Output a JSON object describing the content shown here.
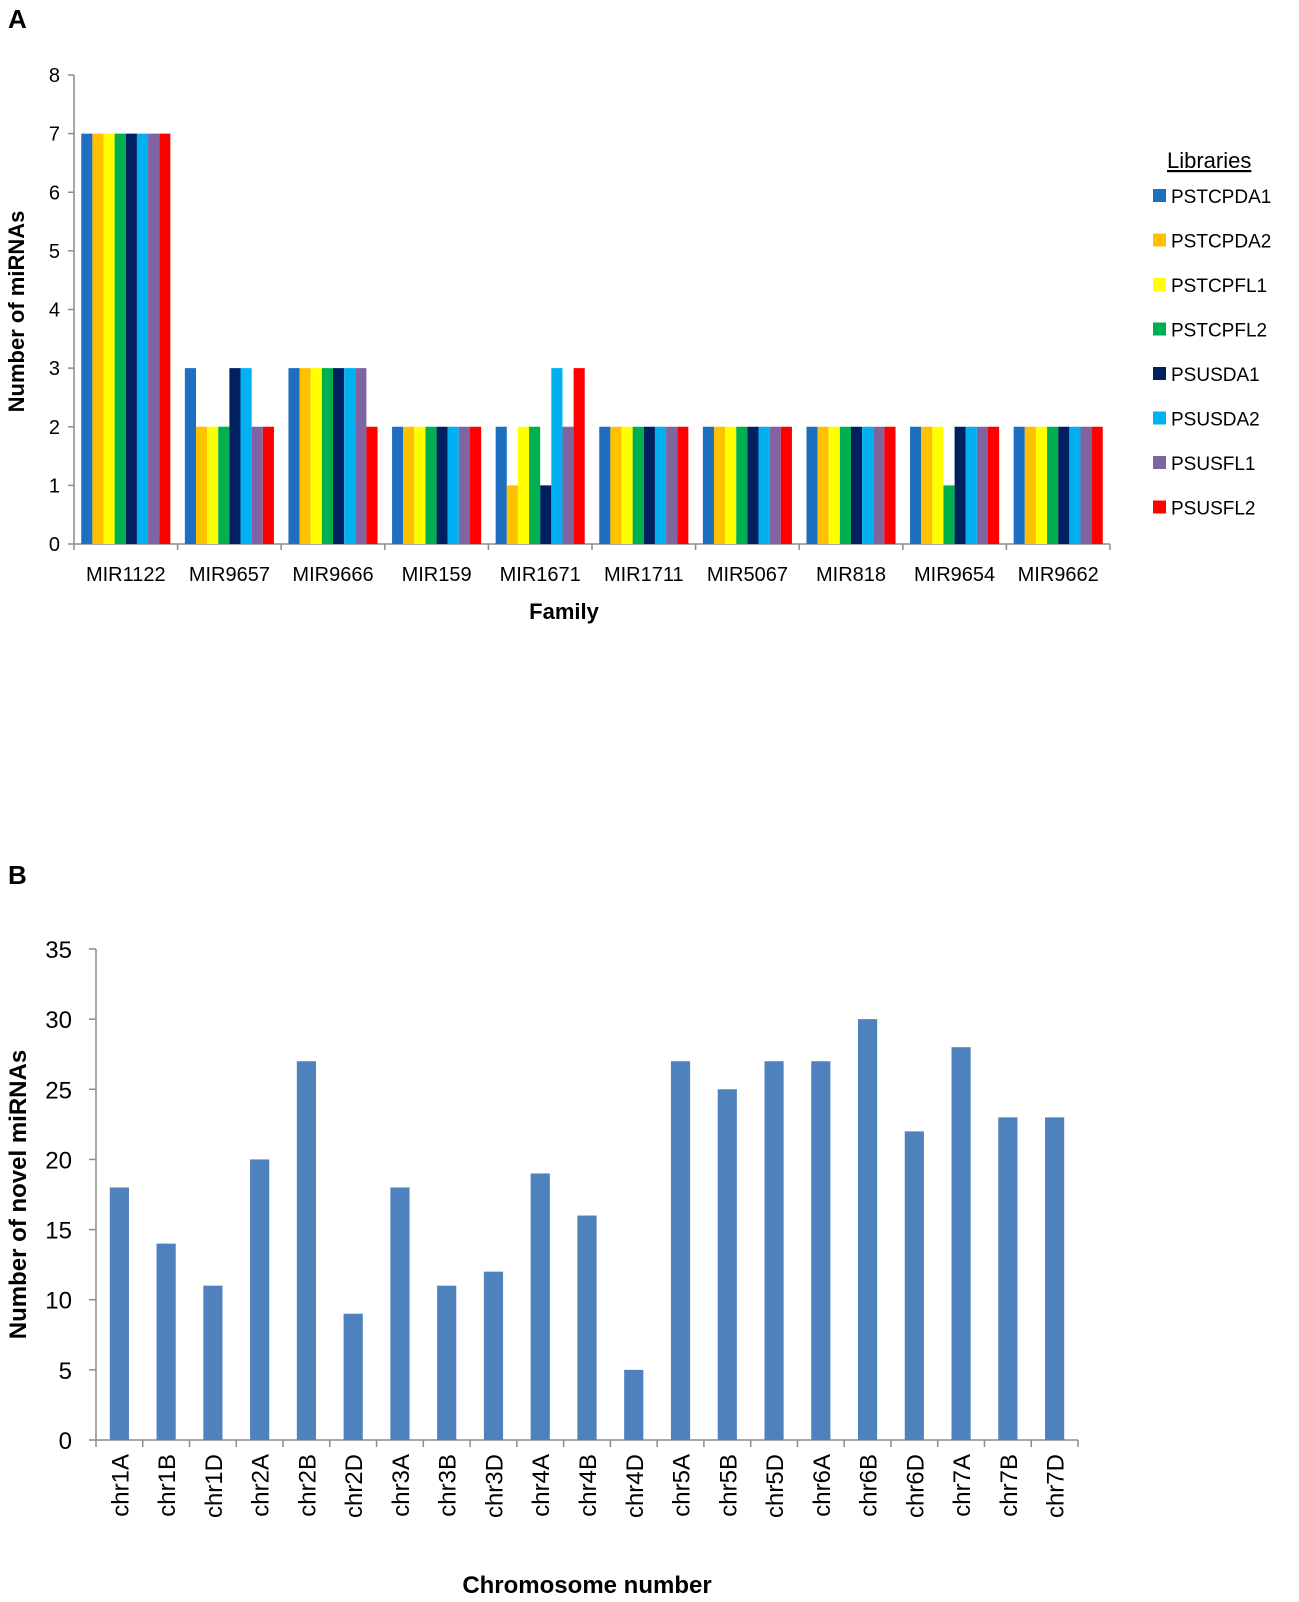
{
  "panels": {
    "a": "A",
    "b": "B"
  },
  "colors": {
    "PSTCPDA1": "#1f6fc0",
    "PSTCPDA2": "#ffc000",
    "PSTCPFL1": "#ffff00",
    "PSTCPFL2": "#00b050",
    "PSUSDA1": "#002060",
    "PSUSDA2": "#00b0f0",
    "PSUSFL1": "#8064a2",
    "PSUSFL2": "#ff0000",
    "chartB": "#4f81bd",
    "axis": "#8c8c8c"
  },
  "chart_data": [
    {
      "type": "bar",
      "title": "",
      "xlabel": "Family",
      "ylabel": "Number of miRNAs",
      "ylim": [
        0,
        8
      ],
      "yticks": [
        "0",
        "1",
        "2",
        "3",
        "4",
        "5",
        "6",
        "7",
        "8"
      ],
      "legend_title": "Libraries",
      "legend_position": "right",
      "categories": [
        "MIR1122",
        "MIR9657",
        "MIR9666",
        "MIR159",
        "MIR1671",
        "MIR1711",
        "MIR5067",
        "MIR818",
        "MIR9654",
        "MIR9662"
      ],
      "series": [
        {
          "name": "PSTCPDA1",
          "values": [
            7,
            3,
            3,
            2,
            2,
            2,
            2,
            2,
            2,
            2
          ]
        },
        {
          "name": "PSTCPDA2",
          "values": [
            7,
            2,
            3,
            2,
            1,
            2,
            2,
            2,
            2,
            2
          ]
        },
        {
          "name": "PSTCPFL1",
          "values": [
            7,
            2,
            3,
            2,
            2,
            2,
            2,
            2,
            2,
            2
          ]
        },
        {
          "name": "PSTCPFL2",
          "values": [
            7,
            2,
            3,
            2,
            2,
            2,
            2,
            2,
            1,
            2
          ]
        },
        {
          "name": "PSUSDA1",
          "values": [
            7,
            3,
            3,
            2,
            1,
            2,
            2,
            2,
            2,
            2
          ]
        },
        {
          "name": "PSUSDA2",
          "values": [
            7,
            3,
            3,
            2,
            3,
            2,
            2,
            2,
            2,
            2
          ]
        },
        {
          "name": "PSUSFL1",
          "values": [
            7,
            2,
            3,
            2,
            2,
            2,
            2,
            2,
            2,
            2
          ]
        },
        {
          "name": "PSUSFL2",
          "values": [
            7,
            2,
            2,
            2,
            3,
            2,
            2,
            2,
            2,
            2
          ]
        }
      ]
    },
    {
      "type": "bar",
      "title": "",
      "xlabel": "Chromosome number",
      "ylabel": "Number of novel miRNAs",
      "ylim": [
        0,
        35
      ],
      "yticks": [
        "0",
        "5",
        "10",
        "15",
        "20",
        "25",
        "30",
        "35"
      ],
      "categories": [
        "chr1A",
        "chr1B",
        "chr1D",
        "chr2A",
        "chr2B",
        "chr2D",
        "chr3A",
        "chr3B",
        "chr3D",
        "chr4A",
        "chr4B",
        "chr4D",
        "chr5A",
        "chr5B",
        "chr5D",
        "chr6A",
        "chr6B",
        "chr6D",
        "chr7A",
        "chr7B",
        "chr7D"
      ],
      "values": [
        18,
        14,
        11,
        20,
        27,
        9,
        18,
        11,
        12,
        19,
        16,
        5,
        27,
        25,
        27,
        27,
        30,
        22,
        28,
        23,
        23
      ]
    }
  ]
}
